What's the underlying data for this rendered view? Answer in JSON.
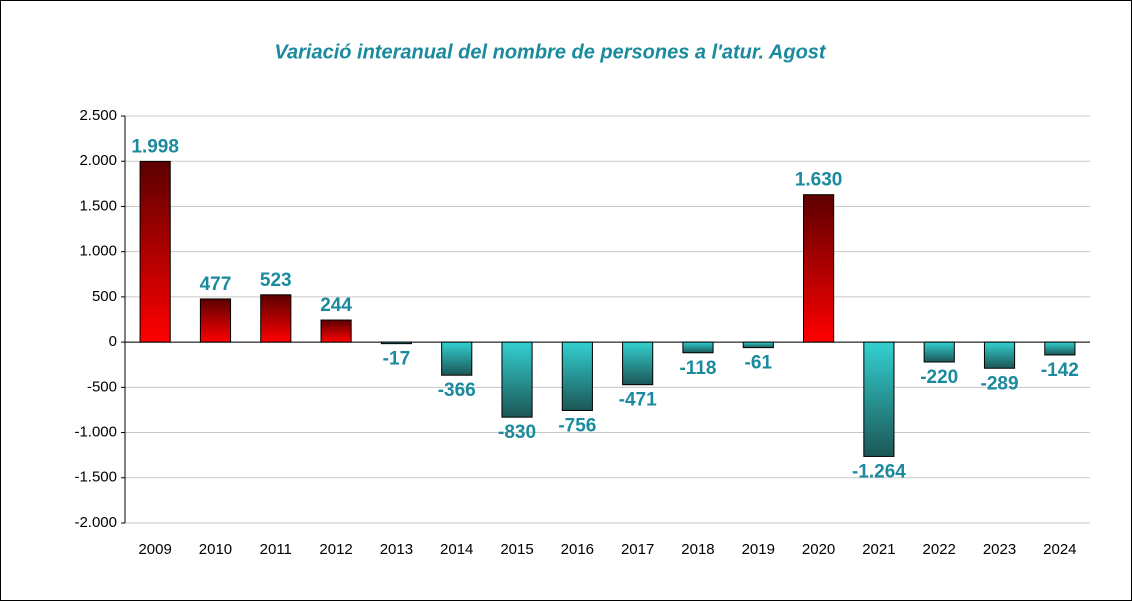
{
  "chart_data": {
    "type": "bar",
    "title": "Variació interanual del nombre de persones a l'atur. Agost",
    "categories": [
      "2009",
      "2010",
      "2011",
      "2012",
      "2013",
      "2014",
      "2015",
      "2016",
      "2017",
      "2018",
      "2019",
      "2020",
      "2021",
      "2022",
      "2023",
      "2024"
    ],
    "values": [
      1998,
      477,
      523,
      244,
      -17,
      -366,
      -830,
      -756,
      -471,
      -118,
      -61,
      1630,
      -1264,
      -220,
      -289,
      -142
    ],
    "value_labels": [
      "1.998",
      "477",
      "523",
      "244",
      "-17",
      "-366",
      "-830",
      "-756",
      "-471",
      "-118",
      "-61",
      "1.630",
      "-1.264",
      "-220",
      "-289",
      "-142"
    ],
    "positive_colors": [
      "#5c0000",
      "#ff0000"
    ],
    "negative_colors": [
      "#33d0d0",
      "#1c5656"
    ],
    "label_color": "#1a8a9e",
    "ylim": [
      -2000,
      2500
    ],
    "yticks": [
      {
        "value": -2000,
        "label": "-2.000"
      },
      {
        "value": -1500,
        "label": "-1.500"
      },
      {
        "value": -1000,
        "label": "-1.000"
      },
      -500,
      0,
      500,
      {
        "value": 1000,
        "label": "1.000"
      },
      {
        "value": 1500,
        "label": "1.500"
      },
      {
        "value": 2000,
        "label": "2.000"
      },
      {
        "value": 2500,
        "label": "2.500"
      }
    ],
    "grid": true
  }
}
